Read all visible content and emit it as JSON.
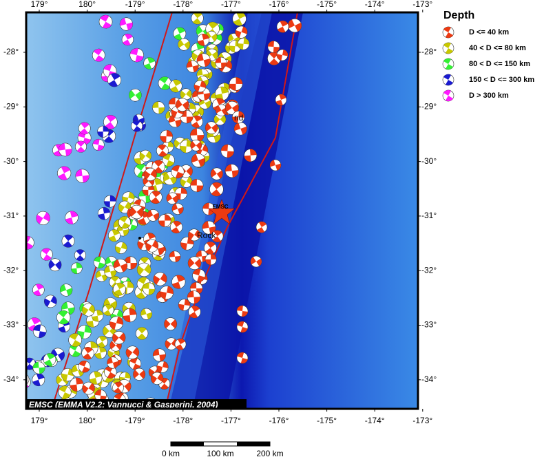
{
  "map": {
    "lon_labels": [
      "179°",
      "180°",
      "-179°",
      "-178°",
      "-177°",
      "-176°",
      "-175°",
      "-174°",
      "-173°"
    ],
    "lat_labels": [
      "-28°",
      "-29°",
      "-30°",
      "-31°",
      "-32°",
      "-33°",
      "-34°"
    ],
    "place_labels": [
      "nd",
      "Rock"
    ],
    "epicenter_label": "EMSC",
    "credit": "EMSC (EMMA V2.2; Vannucci & Gasperini, 2004)",
    "scale_labels": [
      "0 km",
      "100 km",
      "200 km"
    ],
    "legend": {
      "title": "Depth",
      "items": [
        {
          "label": "D <= 40 km",
          "color": "#ec3a12"
        },
        {
          "label": "40 < D <= 80 km",
          "color": "#c8c800"
        },
        {
          "label": "80 < D <= 150 km",
          "color": "#33f033"
        },
        {
          "label": "150 < D <= 300 km",
          "color": "#1a1ad0"
        },
        {
          "label": "D > 300 km",
          "color": "#ff1aff"
        }
      ]
    }
  }
}
